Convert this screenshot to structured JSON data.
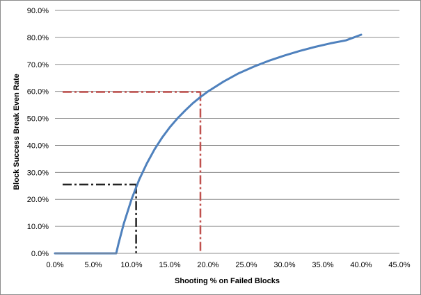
{
  "chart_data": {
    "type": "line",
    "title": "",
    "xlabel": "Shooting % on Failed Blocks",
    "ylabel": "Block Success Break Even Rate",
    "xlim": [
      0,
      45
    ],
    "ylim": [
      0,
      90
    ],
    "x_ticks": [
      "0.0%",
      "5.0%",
      "10.0%",
      "15.0%",
      "20.0%",
      "25.0%",
      "30.0%",
      "35.0%",
      "40.0%",
      "45.0%"
    ],
    "y_ticks": [
      "0.0%",
      "10.0%",
      "20.0%",
      "30.0%",
      "40.0%",
      "50.0%",
      "60.0%",
      "70.0%",
      "80.0%",
      "90.0%"
    ],
    "grid": "horizontal",
    "legend": "none",
    "series": [
      {
        "color": "#4f81bd",
        "x": [
          0,
          2,
          4,
          6,
          8,
          8.3,
          9,
          10,
          11,
          12,
          13,
          14,
          15,
          16,
          17,
          18,
          19,
          20,
          22,
          24,
          26,
          28,
          30,
          32,
          34,
          36,
          38,
          40
        ],
        "y": [
          0,
          0,
          0,
          0,
          0,
          3.6,
          11.1,
          20.0,
          27.3,
          33.3,
          38.5,
          42.9,
          46.7,
          50.0,
          52.9,
          55.6,
          57.9,
          60.0,
          63.6,
          66.7,
          69.2,
          71.4,
          73.3,
          75.0,
          76.5,
          77.8,
          78.9,
          81.0
        ]
      }
    ],
    "reference_lines": [
      {
        "color": "#c0504d",
        "x": 19.0,
        "y": 59.8
      },
      {
        "color": "#222222",
        "x": 10.6,
        "y": 25.5
      }
    ]
  }
}
